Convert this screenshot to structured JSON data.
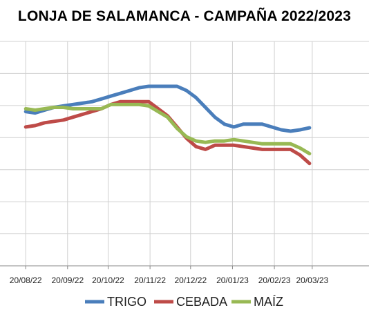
{
  "chart_data": {
    "type": "line",
    "title": "LONJA DE SALAMANCA - CAMPAÑA 2022/2023",
    "xlabel": "",
    "ylabel": "",
    "x_tick_labels": [
      "20/08/22",
      "20/09/22",
      "20/10/22",
      "20/11/22",
      "20/12/22",
      "20/01/23",
      "20/02/23",
      "20/03/23"
    ],
    "x": [
      "2022-08-20",
      "2022-08-27",
      "2022-09-03",
      "2022-09-10",
      "2022-09-17",
      "2022-09-24",
      "2022-10-01",
      "2022-10-08",
      "2022-10-15",
      "2022-10-22",
      "2022-10-29",
      "2022-11-05",
      "2022-11-12",
      "2022-11-19",
      "2022-11-26",
      "2022-12-03",
      "2022-12-10",
      "2022-12-17",
      "2022-12-24",
      "2022-12-31",
      "2023-01-07",
      "2023-01-14",
      "2023-01-21",
      "2023-01-28",
      "2023-02-04",
      "2023-02-11",
      "2023-02-18",
      "2023-02-25",
      "2023-03-04",
      "2023-03-11",
      "2023-03-18"
    ],
    "xlim": [
      "2022-08-20",
      "2023-04-20"
    ],
    "ylim": [
      0,
      8
    ],
    "grid": true,
    "legend": "bottom",
    "series": [
      {
        "name": "TRIGO",
        "color": "#4a7ebb",
        "values": [
          5.5,
          5.45,
          5.55,
          5.65,
          5.7,
          5.75,
          5.8,
          5.85,
          5.95,
          6.05,
          6.15,
          6.25,
          6.35,
          6.4,
          6.4,
          6.4,
          6.4,
          6.25,
          6.0,
          5.65,
          5.3,
          5.05,
          4.95,
          5.05,
          5.05,
          5.05,
          4.95,
          4.85,
          4.8,
          4.85,
          4.92
        ]
      },
      {
        "name": "CEBADA",
        "color": "#be4b48",
        "values": [
          4.95,
          5.0,
          5.1,
          5.15,
          5.2,
          5.3,
          5.4,
          5.5,
          5.6,
          5.75,
          5.85,
          5.85,
          5.85,
          5.85,
          5.6,
          5.35,
          4.95,
          4.55,
          4.25,
          4.15,
          4.3,
          4.3,
          4.3,
          4.25,
          4.2,
          4.15,
          4.15,
          4.15,
          4.15,
          3.95,
          3.65
        ]
      },
      {
        "name": "MAÍZ",
        "color": "#98b954",
        "values": [
          5.6,
          5.55,
          5.6,
          5.65,
          5.65,
          5.6,
          5.6,
          5.6,
          5.6,
          5.75,
          5.75,
          5.75,
          5.75,
          5.7,
          5.5,
          5.3,
          4.9,
          4.6,
          4.45,
          4.4,
          4.45,
          4.45,
          4.5,
          4.45,
          4.4,
          4.35,
          4.35,
          4.35,
          4.35,
          4.2,
          4.0
        ]
      }
    ]
  }
}
